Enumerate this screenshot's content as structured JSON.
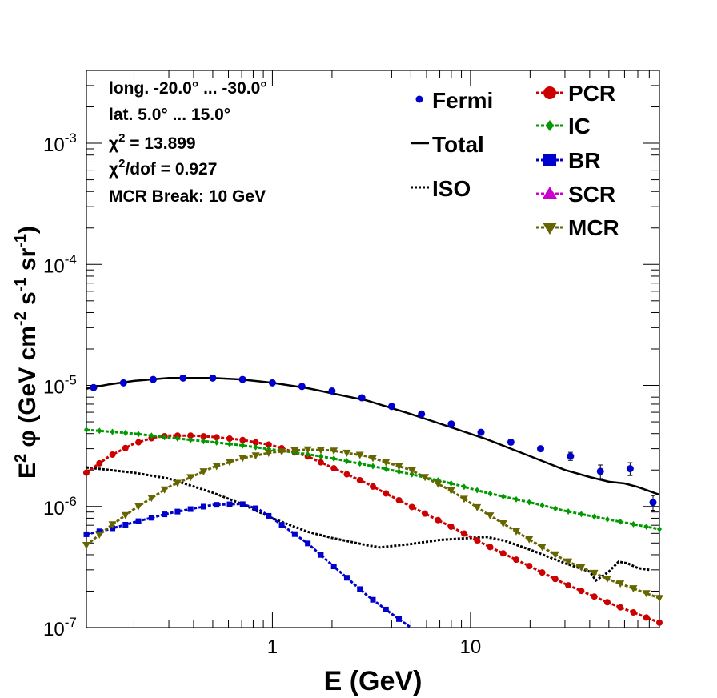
{
  "chart_data": {
    "type": "line",
    "xscale": "log",
    "yscale": "log",
    "xlim": [
      0.115,
      90
    ],
    "ylim": [
      1e-07,
      0.004
    ],
    "xlabel": "E (GeV)",
    "ylabel": {
      "prefix": "E",
      "sup1": "2",
      "phi": "  φ (GeV cm",
      "sup2": "-2",
      "mid1": " s",
      "sup3": "-1",
      "mid2": " sr",
      "sup4": "-1",
      "suffix": ")"
    },
    "x_tick_labels": [
      {
        "value": 1,
        "label": "1"
      },
      {
        "value": 10,
        "label": "10"
      }
    ],
    "y_tick_labels": [
      {
        "value": 1e-07,
        "base": "10",
        "exp": "-7"
      },
      {
        "value": 1e-06,
        "base": "10",
        "exp": "-6"
      },
      {
        "value": 1e-05,
        "base": "10",
        "exp": "-5"
      },
      {
        "value": 0.0001,
        "base": "10",
        "exp": "-4"
      },
      {
        "value": 0.001,
        "base": "10",
        "exp": "-3"
      }
    ],
    "stats": {
      "line1": "long. -20.0° ... -30.0°",
      "line2": "lat. 5.0° ... 15.0°",
      "chi2_prefix": "χ",
      "chi2_sup": "2",
      "chi2_value": " = 13.899",
      "chi2dof_prefix": "χ",
      "chi2dof_sup": "2",
      "chi2dof_value": "/dof = 0.927",
      "line5": "MCR Break: 10 GeV"
    },
    "legend_left": [
      {
        "name": "Fermi",
        "color": "#0000cc"
      },
      {
        "name": "Total",
        "color": "#000000"
      },
      {
        "name": "ISO",
        "color": "#000000"
      }
    ],
    "legend_right": [
      {
        "name": "PCR",
        "color": "#cc0000",
        "marker": "circle"
      },
      {
        "name": "IC",
        "color": "#009900",
        "marker": "diamond"
      },
      {
        "name": "BR",
        "color": "#0000cc",
        "marker": "square"
      },
      {
        "name": "SCR",
        "color": "#cc00cc",
        "marker": "triangle-up"
      },
      {
        "name": "MCR",
        "color": "#666600",
        "marker": "triangle-down"
      }
    ],
    "fermi": {
      "x": [
        0.125,
        0.177,
        0.25,
        0.354,
        0.5,
        0.707,
        1.0,
        1.41,
        2.0,
        2.83,
        4.0,
        5.66,
        8.0,
        11.3,
        16.0,
        22.6,
        32.0,
        45.3,
        64.0,
        90.5
      ],
      "y": [
        9.6e-06,
        1.05e-05,
        1.12e-05,
        1.15e-05,
        1.15e-05,
        1.12e-05,
        1.05e-05,
        9.8e-06,
        9e-06,
        7.9e-06,
        6.7e-06,
        5.8e-06,
        4.8e-06,
        4.1e-06,
        3.4e-06,
        3e-06,
        2.6e-06,
        1.95e-06,
        2.05e-06,
        1.08e-06
      ],
      "err": [
        2e-07,
        2e-07,
        2e-07,
        2e-07,
        2e-07,
        2e-07,
        2e-07,
        2e-07,
        1.5e-07,
        1.5e-07,
        1.5e-07,
        1.2e-07,
        1e-07,
        1e-07,
        1e-07,
        1.5e-07,
        2e-07,
        2.5e-07,
        2.5e-07,
        1.5e-07
      ]
    },
    "series": [
      {
        "name": "Total",
        "color": "#000000",
        "style": "solid",
        "marker": "none",
        "x": [
          0.115,
          0.15,
          0.2,
          0.3,
          0.5,
          0.7,
          1.0,
          1.5,
          2.0,
          3.0,
          5.0,
          8.0,
          12.0,
          20.0,
          30.0,
          40.0,
          50.0,
          60.0,
          70.0,
          90.0
        ],
        "y": [
          9.4e-06,
          1.02e-05,
          1.09e-05,
          1.15e-05,
          1.15e-05,
          1.12e-05,
          1.05e-05,
          9.5e-06,
          8.6e-06,
          7.5e-06,
          5.8e-06,
          4.5e-06,
          3.6e-06,
          2.6e-06,
          2e-06,
          1.75e-06,
          1.6e-06,
          1.55e-06,
          1.45e-06,
          1.25e-06
        ]
      },
      {
        "name": "ISO",
        "color": "#000000",
        "style": "dotted",
        "marker": "none",
        "x": [
          0.115,
          0.15,
          0.2,
          0.3,
          0.5,
          0.7,
          1.0,
          1.5,
          2.0,
          3.0,
          3.5,
          5.0,
          7.0,
          10.0,
          12.0,
          15.0,
          20.0,
          30.0,
          40.0,
          43.0,
          50.0,
          56.0,
          62.0,
          70.0,
          80.0
        ],
        "y": [
          2.1e-06,
          2e-06,
          1.9e-06,
          1.7e-06,
          1.3e-06,
          1.05e-06,
          8e-07,
          6.2e-07,
          5.5e-07,
          4.8e-07,
          4.6e-07,
          4.9e-07,
          5.3e-07,
          5.5e-07,
          5.6e-07,
          5.2e-07,
          4.4e-07,
          3.4e-07,
          2.9e-07,
          2.45e-07,
          2.9e-07,
          3.5e-07,
          3.4e-07,
          3.1e-07,
          3e-07
        ]
      },
      {
        "name": "PCR",
        "color": "#cc0000",
        "style": "dashed",
        "marker": "circle",
        "x": [
          0.115,
          0.15,
          0.2,
          0.25,
          0.3,
          0.4,
          0.5,
          0.7,
          1.0,
          1.5,
          2.0,
          3.0,
          5.0,
          8.0,
          12.0,
          20.0,
          30.0,
          50.0,
          90.0
        ],
        "y": [
          1.9e-06,
          2.6e-06,
          3.3e-06,
          3.7e-06,
          3.85e-06,
          3.85e-06,
          3.75e-06,
          3.55e-06,
          3.2e-06,
          2.6e-06,
          2.1e-06,
          1.55e-06,
          1e-06,
          6.8e-07,
          4.8e-07,
          3.2e-07,
          2.3e-07,
          1.6e-07,
          1.1e-07
        ]
      },
      {
        "name": "IC",
        "color": "#009900",
        "style": "dashed",
        "marker": "diamond",
        "x": [
          0.115,
          0.2,
          0.3,
          0.5,
          0.7,
          1.0,
          1.5,
          2.0,
          3.0,
          5.0,
          8.0,
          12.0,
          20.0,
          30.0,
          50.0,
          90.0
        ],
        "y": [
          4.3e-06,
          4e-06,
          3.7e-06,
          3.4e-06,
          3.2e-06,
          2.95e-06,
          2.7e-06,
          2.5e-06,
          2.2e-06,
          1.85e-06,
          1.55e-06,
          1.3e-06,
          1.08e-06,
          9.2e-07,
          7.8e-07,
          6.5e-07
        ]
      },
      {
        "name": "BR",
        "color": "#0000cc",
        "style": "dashed",
        "marker": "square",
        "x": [
          0.115,
          0.15,
          0.2,
          0.3,
          0.5,
          0.7,
          0.85,
          1.0,
          1.5,
          2.0,
          3.0,
          4.0,
          5.0
        ],
        "y": [
          5.9e-07,
          6.5e-07,
          7.4e-07,
          8.8e-07,
          1.03e-06,
          1.05e-06,
          9.5e-07,
          8e-07,
          5e-07,
          3.3e-07,
          1.85e-07,
          1.3e-07,
          1e-07
        ]
      },
      {
        "name": "MCR",
        "color": "#666600",
        "style": "dashed",
        "marker": "triangle-down",
        "x": [
          0.115,
          0.15,
          0.2,
          0.3,
          0.5,
          0.7,
          1.0,
          1.5,
          2.0,
          3.0,
          5.0,
          8.0,
          12.0,
          20.0,
          30.0,
          50.0,
          90.0
        ],
        "y": [
          4.8e-07,
          6.8e-07,
          9.5e-07,
          1.45e-06,
          2.1e-06,
          2.5e-06,
          2.8e-06,
          2.95e-06,
          2.9e-06,
          2.6e-06,
          2e-06,
          1.35e-06,
          8.8e-07,
          5.3e-07,
          3.6e-07,
          2.5e-07,
          1.75e-07
        ]
      }
    ]
  }
}
